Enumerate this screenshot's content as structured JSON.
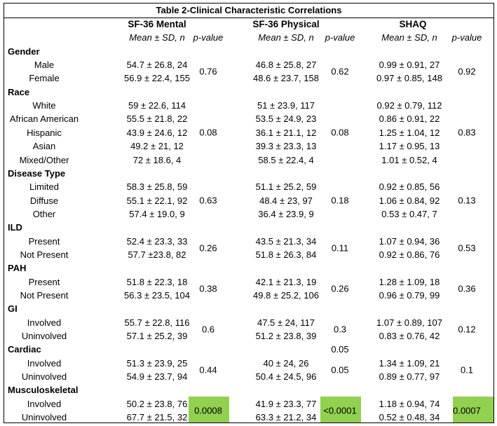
{
  "title": "Table 2-Clinical Characteristic Correlations",
  "headers": {
    "groups": [
      "SF-36 Mental",
      "SF-36 Physical",
      "SHAQ"
    ],
    "mean_label": "Mean ± SD, n",
    "p_label": "p-value"
  },
  "categories": [
    {
      "name": "Gender",
      "rows": [
        {
          "label": "Male",
          "mental": "54.7 ± 26.8, 24",
          "physical": "46.8 ± 25.8, 27",
          "shaq": "0.99 ± 0.91, 27"
        },
        {
          "label": "Female",
          "mental": "56.9 ± 22.4, 155",
          "physical": "48.6 ± 23.7, 158",
          "shaq": "0.97 ± 0.85, 148"
        }
      ],
      "p": {
        "mental": "0.76",
        "physical": "0.62",
        "shaq": "0.92"
      }
    },
    {
      "name": "Race",
      "rows": [
        {
          "label": "White",
          "mental": "59 ± 22.6, 114",
          "physical": "51 ± 23.9, 117",
          "shaq": "0.92 ± 0.79, 112"
        },
        {
          "label": "African American",
          "mental": "55.5 ± 21.8, 22",
          "physical": "53.5 ± 24.9, 23",
          "shaq": "0.86 ± 0.91, 22"
        },
        {
          "label": "Hispanic",
          "mental": "43.9 ± 24.6, 12",
          "physical": "36.1 ± 21.1, 12",
          "shaq": "1.25 ± 1.04, 12"
        },
        {
          "label": "Asian",
          "mental": "49.2 ± 21, 12",
          "physical": "39.3 ± 23.3, 13",
          "shaq": "1.17 ± 0.95, 13"
        },
        {
          "label": "Mixed/Other",
          "mental": "72 ± 18.6, 4",
          "physical": "58.5 ± 22.4, 4",
          "shaq": "1.01 ± 0.52, 4"
        }
      ],
      "p": {
        "mental": "0.08",
        "physical": "0.08",
        "shaq": "0.83"
      }
    },
    {
      "name": "Disease Type",
      "rows": [
        {
          "label": "Limited",
          "mental": "58.3 ± 25.8, 59",
          "physical": "51.1 ± 25.2, 59",
          "shaq": "0.92 ± 0.85, 56"
        },
        {
          "label": "Diffuse",
          "mental": "55.1 ± 22.1, 92",
          "physical": "48.4 ± 23, 97",
          "shaq": "1.06 ± 0.84, 92"
        },
        {
          "label": "Other",
          "mental": "57.4 ± 19.0, 9",
          "physical": "36.4 ± 23.9, 9",
          "shaq": "0.53 ± 0.47, 7"
        }
      ],
      "p": {
        "mental": "0.63",
        "physical": "0.18",
        "shaq": "0.13"
      }
    },
    {
      "name": "ILD",
      "rows": [
        {
          "label": "Present",
          "mental": "52.4 ± 23.3, 33",
          "physical": "43.5 ± 21.3, 34",
          "shaq": "1.07 ± 0.94, 36"
        },
        {
          "label": "Not Present",
          "mental": "57.7 ±23.8, 82",
          "physical": "51.8 ± 26.3, 84",
          "shaq": "0.92 ± 0.86, 76"
        }
      ],
      "p": {
        "mental": "0.26",
        "physical": "0.11",
        "shaq": "0.53"
      }
    },
    {
      "name": "PAH",
      "rows": [
        {
          "label": "Present",
          "mental": "51.8 ± 22.3, 18",
          "physical": "42.1 ± 21.3, 19",
          "shaq": "1.28 ± 1.09, 18"
        },
        {
          "label": "Not Present",
          "mental": "56.3 ± 23.5, 104",
          "physical": "49.8 ± 25.2, 106",
          "shaq": "0.96 ± 0.79, 99"
        }
      ],
      "p": {
        "mental": "0.38",
        "physical": "0.26",
        "shaq": "0.36"
      }
    },
    {
      "name": "GI",
      "rows": [
        {
          "label": "Involved",
          "mental": "55.7 ± 22.8, 116",
          "physical": "47.5 ± 24, 117",
          "shaq": "1.07 ± 0.89, 107"
        },
        {
          "label": "Uninvolved",
          "mental": "57.1 ± 25.2, 39",
          "physical": "51.2 ± 23.8, 39",
          "shaq": "0.83 ± 0.76, 42"
        }
      ],
      "p": {
        "mental": "0.6",
        "physical": "0.3",
        "shaq": "0.12"
      }
    },
    {
      "name": "Cardiac",
      "header_p": {
        "physical": "0.05"
      },
      "rows": [
        {
          "label": "Involved",
          "mental": "51.3 ± 23.9, 25",
          "physical": "40 ± 24, 26",
          "shaq": "1.34 ± 1.09, 21"
        },
        {
          "label": "Uninvolved",
          "mental": "54.9 ± 23.7, 94",
          "physical": "50.4 ± 24.5, 96",
          "shaq": "0.89 ± 0.77, 97"
        }
      ],
      "p": {
        "mental": "0.44",
        "physical": "0.05",
        "shaq": "0.1"
      }
    },
    {
      "name": "Musculoskeletal",
      "highlight": true,
      "highlight_color": "#92d050",
      "rows": [
        {
          "label": "Involved",
          "mental": "50.2 ± 23.8, 76",
          "physical": "41.9 ± 23.3, 77",
          "shaq": "1.18 ± 0.94, 74"
        },
        {
          "label": "Uninvolved",
          "mental": "67.7 ± 21.5, 32",
          "physical": "63.3 ± 21.2, 34",
          "shaq": "0.52 ± 0.48, 34"
        }
      ],
      "p": {
        "mental": "0.0008",
        "physical": "<0.0001",
        "shaq": "0.0007"
      }
    }
  ]
}
